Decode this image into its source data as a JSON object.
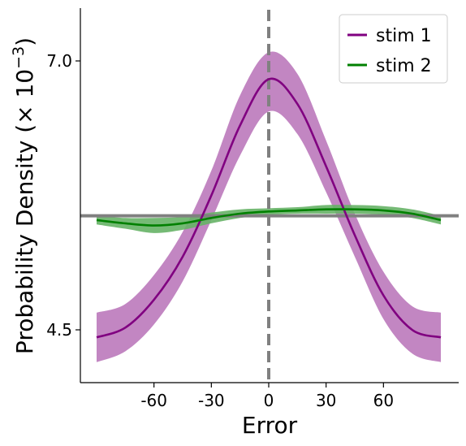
{
  "chart_data": {
    "type": "line",
    "xlabel": "Error",
    "ylabel_main": "Probability Density (× 10",
    "ylabel_exp": "−3",
    "ylabel_close": ")",
    "xlim": [
      -90,
      90
    ],
    "ylim": [
      4.0,
      7.5
    ],
    "x_ticks": [
      -60,
      -30,
      0,
      30,
      60
    ],
    "x_tick_labels": [
      "-60",
      "-30",
      "0",
      "30",
      "60"
    ],
    "y_ticks": [
      4.5,
      7.0
    ],
    "y_tick_labels": [
      "4.5",
      "7.0"
    ],
    "reference_lines": {
      "horizontal_y": 5.56,
      "vertical_x": 0,
      "color": "#808080"
    },
    "legend": {
      "position": "top-right"
    },
    "series": [
      {
        "name": "stim 1",
        "color": "#800080",
        "band_color": "#bf7fbf",
        "x": [
          -90,
          -75,
          -60,
          -45,
          -30,
          -15,
          0,
          15,
          30,
          45,
          60,
          75,
          90
        ],
        "y": [
          4.43,
          4.52,
          4.78,
          5.18,
          5.75,
          6.4,
          6.83,
          6.6,
          6.02,
          5.38,
          4.82,
          4.5,
          4.43
        ],
        "lower": [
          4.2,
          4.3,
          4.55,
          4.95,
          5.52,
          6.12,
          6.53,
          6.32,
          5.78,
          5.18,
          4.6,
          4.28,
          4.2
        ],
        "upper": [
          4.66,
          4.74,
          5.01,
          5.41,
          5.98,
          6.68,
          7.08,
          6.88,
          6.26,
          5.58,
          5.04,
          4.72,
          4.66
        ]
      },
      {
        "name": "stim 2",
        "color": "#008000",
        "band_color": "#66b266",
        "x": [
          -90,
          -75,
          -60,
          -45,
          -30,
          -15,
          0,
          15,
          30,
          45,
          60,
          75,
          90
        ],
        "y": [
          5.52,
          5.49,
          5.47,
          5.49,
          5.54,
          5.58,
          5.6,
          5.61,
          5.62,
          5.62,
          5.61,
          5.58,
          5.52
        ],
        "lower": [
          5.48,
          5.44,
          5.4,
          5.43,
          5.49,
          5.54,
          5.57,
          5.58,
          5.58,
          5.58,
          5.57,
          5.54,
          5.48
        ],
        "upper": [
          5.56,
          5.54,
          5.54,
          5.55,
          5.59,
          5.62,
          5.63,
          5.64,
          5.66,
          5.66,
          5.65,
          5.62,
          5.56
        ]
      }
    ]
  }
}
